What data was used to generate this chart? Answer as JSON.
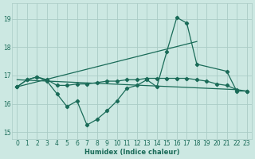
{
  "xlabel": "Humidex (Indice chaleur)",
  "xlim": [
    -0.5,
    23.5
  ],
  "ylim": [
    14.75,
    19.55
  ],
  "yticks": [
    15,
    16,
    17,
    18,
    19
  ],
  "xticks": [
    0,
    1,
    2,
    3,
    4,
    5,
    6,
    7,
    8,
    9,
    10,
    11,
    12,
    13,
    14,
    15,
    16,
    17,
    18,
    19,
    20,
    21,
    22,
    23
  ],
  "bg_color": "#cce8e2",
  "grid_color": "#aaccC6",
  "line_color": "#1a6b58",
  "series_zigzag": {
    "x": [
      0,
      1,
      2,
      3,
      4,
      5,
      6,
      7,
      8,
      9,
      10,
      11,
      12,
      13,
      14,
      15,
      16,
      17,
      18,
      21,
      22,
      23
    ],
    "y": [
      16.6,
      16.85,
      16.95,
      16.8,
      16.35,
      15.9,
      16.1,
      15.25,
      15.45,
      15.75,
      16.1,
      16.55,
      16.65,
      16.85,
      16.6,
      17.85,
      19.05,
      18.85,
      17.4,
      17.15,
      16.45,
      16.45
    ]
  },
  "series_smooth": {
    "x": [
      0,
      1,
      2,
      3,
      4,
      5,
      6,
      7,
      8,
      9,
      10,
      11,
      12,
      13,
      14,
      15,
      16,
      17,
      18,
      19,
      20,
      21,
      22,
      23
    ],
    "y": [
      16.6,
      16.85,
      16.95,
      16.85,
      16.65,
      16.65,
      16.7,
      16.7,
      16.75,
      16.8,
      16.8,
      16.85,
      16.85,
      16.9,
      16.9,
      16.9,
      16.9,
      16.9,
      16.85,
      16.8,
      16.7,
      16.65,
      16.5,
      16.45
    ]
  },
  "trend_up": {
    "x": [
      0,
      18
    ],
    "y": [
      16.6,
      18.2
    ]
  },
  "trend_flat": {
    "x": [
      0,
      22
    ],
    "y": [
      16.85,
      16.5
    ]
  },
  "font_color": "#1a6b58",
  "label_fontsize": 6,
  "tick_fontsize": 5.5
}
